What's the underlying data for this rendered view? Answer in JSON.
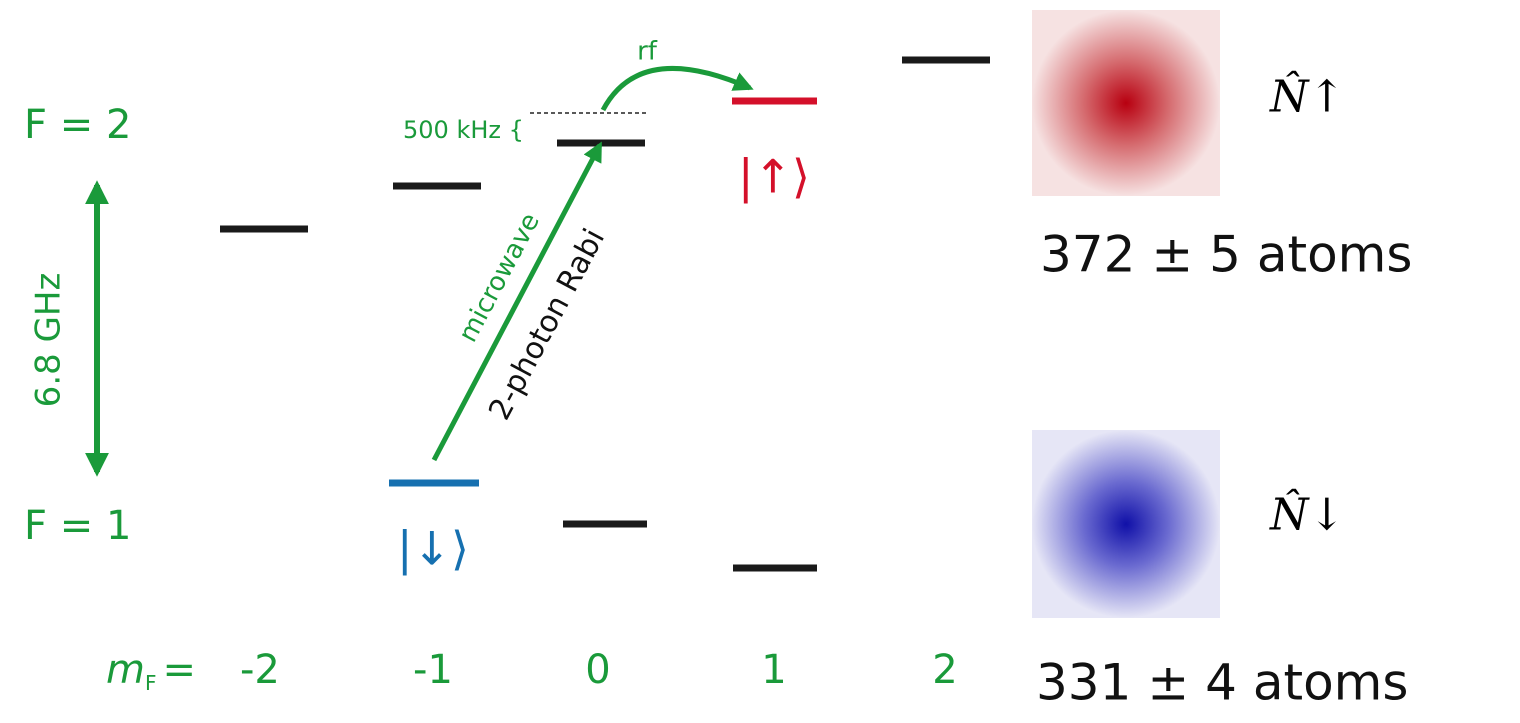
{
  "levels": {
    "upper": "F = 2",
    "lower": "F = 1"
  },
  "splitting": "6.8 GHz",
  "transitions": {
    "microwave": "microwave",
    "two_photon": "2-photon Rabi",
    "rf": "rf",
    "detuning": "500 kHz {"
  },
  "states": {
    "up": "|↑⟩",
    "down": "|↓⟩"
  },
  "axis": {
    "symbol": "m",
    "subscript": "F",
    "relation": "=",
    "labels": [
      "-2",
      "-1",
      "0",
      "1",
      "2"
    ]
  },
  "observables": {
    "up": "N̂↑",
    "down": "N̂↓"
  },
  "counts": {
    "up": "372 ± 5 atoms",
    "down": "331 ± 4 atoms"
  }
}
